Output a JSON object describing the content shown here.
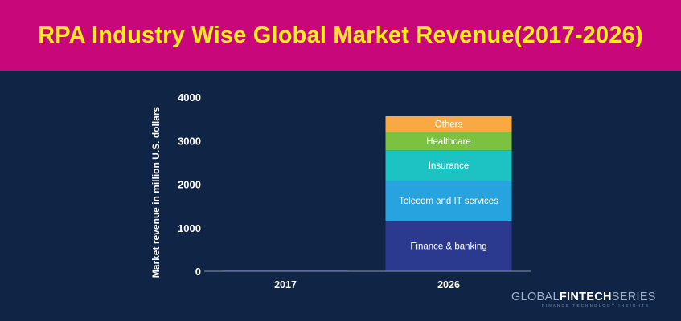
{
  "header": {
    "title": "RPA Industry Wise Global Market Revenue(2017-2026)"
  },
  "logo": {
    "part1": "GLOBAL",
    "part2": "FINTECH",
    "part3": "SERIES",
    "tagline": "FINANCE TECHNOLOGY INSIGHTS"
  },
  "colors": {
    "banner": "#c8087a",
    "title": "#f6ee1c",
    "background": "#102445"
  },
  "chart_data": {
    "type": "bar",
    "stacked": true,
    "categories": [
      "2017",
      "2026"
    ],
    "ylabel": "Market revenue in million U.S. dollars",
    "xlabel": "",
    "ylim": [
      0,
      4000
    ],
    "yticks": [
      0,
      1000,
      2000,
      3000,
      4000
    ],
    "grid": false,
    "legend": "none",
    "series": [
      {
        "name": "Finance & banking",
        "color": "#2b3a8f",
        "values": [
          20,
          1160
        ]
      },
      {
        "name": "Telecom and IT services",
        "color": "#27a3e0",
        "values": [
          0,
          920
        ]
      },
      {
        "name": "Insurance",
        "color": "#1dc3c3",
        "values": [
          0,
          700
        ]
      },
      {
        "name": "Healthcare",
        "color": "#7cc242",
        "values": [
          0,
          420
        ]
      },
      {
        "name": "Others",
        "color": "#f8a93f",
        "values": [
          0,
          360
        ]
      }
    ]
  }
}
